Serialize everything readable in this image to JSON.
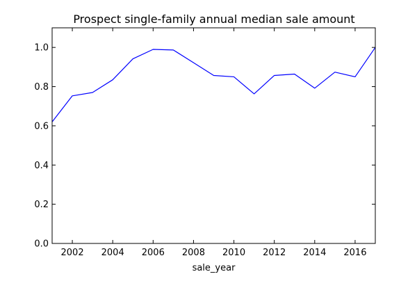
{
  "chart_data": {
    "type": "line",
    "title": "Prospect single-family annual median sale amount",
    "xlabel": "sale_year",
    "ylabel": "",
    "xlim": [
      2001,
      2017
    ],
    "ylim": [
      0.0,
      1.1
    ],
    "x_ticks": [
      2002,
      2004,
      2006,
      2008,
      2010,
      2012,
      2014,
      2016
    ],
    "y_ticks": [
      0.0,
      0.2,
      0.4,
      0.6,
      0.8,
      1.0
    ],
    "x_tick_labels": [
      "2002",
      "2004",
      "2006",
      "2008",
      "2010",
      "2012",
      "2014",
      "2016"
    ],
    "y_tick_labels": [
      "0.0",
      "0.2",
      "0.4",
      "0.6",
      "0.8",
      "1.0"
    ],
    "grid": false,
    "legend": "none",
    "series": [
      {
        "color": "#0000ff",
        "x": [
          2001,
          2002,
          2003,
          2004,
          2005,
          2006,
          2007,
          2008,
          2009,
          2010,
          2011,
          2012,
          2013,
          2014,
          2015,
          2016,
          2017
        ],
        "values": [
          0.62,
          0.753,
          0.77,
          0.835,
          0.942,
          0.99,
          0.987,
          0.922,
          0.857,
          0.85,
          0.763,
          0.857,
          0.864,
          0.792,
          0.874,
          0.85,
          1.0
        ]
      }
    ]
  }
}
